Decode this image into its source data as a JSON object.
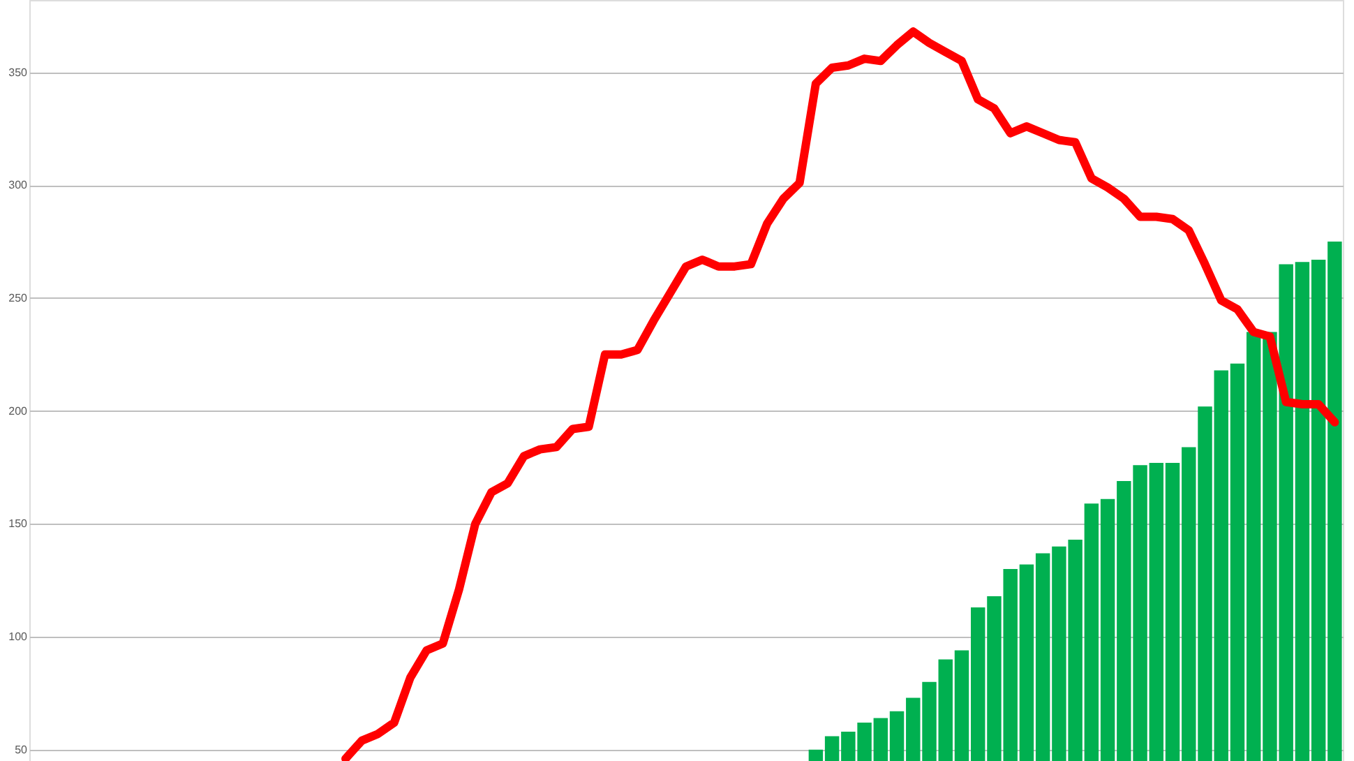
{
  "chart_data": {
    "type": "bar",
    "categories": [
      null,
      null,
      null,
      null,
      null,
      null,
      null,
      null,
      null,
      null,
      null,
      null,
      null,
      null,
      null,
      null,
      null,
      null,
      null,
      null,
      null,
      null,
      null,
      null,
      null,
      null,
      null,
      null,
      null,
      null,
      null,
      null,
      null,
      null,
      null,
      null,
      null,
      null,
      null,
      null,
      null,
      null,
      null,
      null,
      null,
      null,
      null,
      null,
      null,
      null,
      null,
      null,
      null,
      null,
      null,
      null,
      null,
      null,
      null,
      null,
      null,
      null,
      null,
      null,
      null,
      null,
      null,
      null,
      null,
      null,
      null,
      null,
      null,
      null,
      null,
      null,
      null,
      null,
      null,
      null,
      null
    ],
    "series": [
      {
        "color": "#00b050",
        "values": [
          null,
          null,
          null,
          null,
          null,
          null,
          null,
          null,
          null,
          null,
          null,
          null,
          null,
          null,
          null,
          null,
          null,
          null,
          null,
          null,
          null,
          null,
          null,
          null,
          null,
          null,
          null,
          null,
          null,
          null,
          null,
          null,
          null,
          null,
          null,
          null,
          null,
          null,
          null,
          null,
          null,
          null,
          null,
          null,
          null,
          null,
          null,
          null,
          50,
          56,
          58,
          62,
          64,
          67,
          73,
          80,
          90,
          94,
          113,
          118,
          130,
          132,
          137,
          140,
          143,
          159,
          161,
          169,
          176,
          177,
          177,
          184,
          202,
          218,
          221,
          235,
          235,
          265,
          266,
          267,
          275
        ]
      },
      {
        "type": "line",
        "color": "#ff0000",
        "values": [
          null,
          null,
          null,
          null,
          null,
          null,
          null,
          null,
          null,
          null,
          null,
          null,
          null,
          null,
          null,
          null,
          null,
          null,
          null,
          46,
          54,
          57,
          62,
          82,
          94,
          97,
          121,
          150,
          164,
          168,
          180,
          183,
          184,
          192,
          193,
          225,
          225,
          227,
          240,
          252,
          264,
          267,
          264,
          264,
          265,
          283,
          294,
          301,
          345,
          352,
          353,
          356,
          355,
          362,
          368,
          363,
          359,
          355,
          338,
          334,
          323,
          326,
          323,
          320,
          319,
          303,
          299,
          294,
          286,
          286,
          285,
          280,
          265,
          249,
          245,
          235,
          233,
          204,
          203,
          203,
          195
        ]
      }
    ],
    "ylim": [
      45,
      382
    ],
    "yticks": [
      50,
      100,
      150,
      200,
      250,
      300,
      350
    ],
    "grid": "y",
    "tick_labels": "y",
    "line_style": "solid",
    "marker": "none"
  }
}
